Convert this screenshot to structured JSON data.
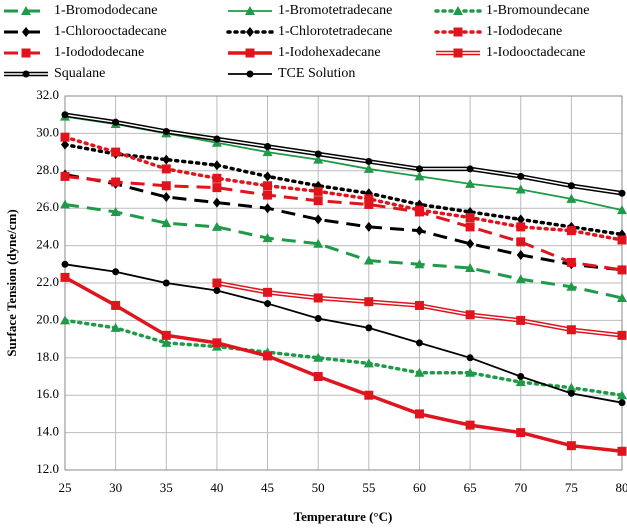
{
  "chart_data": {
    "type": "line",
    "x_label": "Temperature (°C)",
    "y_label": "Surface Tension (dyne/cm)",
    "x": [
      25,
      30,
      35,
      40,
      45,
      50,
      55,
      60,
      65,
      70,
      75,
      80
    ],
    "xlim": [
      25,
      80
    ],
    "xticks": [
      25,
      30,
      35,
      40,
      45,
      50,
      55,
      60,
      65,
      70,
      75,
      80
    ],
    "ylim": [
      12,
      32
    ],
    "yticks": [
      {
        "value": 12,
        "label": "12.0"
      },
      {
        "value": 14,
        "label": "14.0"
      },
      {
        "value": 16,
        "label": "16.0"
      },
      {
        "value": 18,
        "label": "18.0"
      },
      {
        "value": 20,
        "label": "20.0"
      },
      {
        "value": 22,
        "label": "22.0"
      },
      {
        "value": 24,
        "label": "24.0"
      },
      {
        "value": 26,
        "label": "26.0"
      },
      {
        "value": 28,
        "label": "28.0"
      },
      {
        "value": 30,
        "label": "30.0"
      },
      {
        "value": 32,
        "label": "32.0"
      }
    ],
    "grid": true,
    "legend": "top",
    "series": [
      {
        "name": "1-Bromododecane",
        "color": "#1f9a48",
        "dash": "long",
        "marker": "triangle",
        "values": [
          26.2,
          25.8,
          25.2,
          25.0,
          24.4,
          24.1,
          23.2,
          23.0,
          22.8,
          22.2,
          21.8,
          21.2
        ]
      },
      {
        "name": "1-Bromotetradecane",
        "color": "#1f9a48",
        "dash": "solid",
        "marker": "triangle",
        "values": [
          30.9,
          30.5,
          30.0,
          29.5,
          29.0,
          28.6,
          28.1,
          27.7,
          27.3,
          27.0,
          26.5,
          25.9
        ]
      },
      {
        "name": "1-Bromoundecane",
        "color": "#1f9a48",
        "dash": "dot",
        "marker": "triangle",
        "values": [
          20.0,
          19.6,
          18.8,
          18.6,
          18.3,
          18.0,
          17.7,
          17.2,
          17.2,
          16.7,
          16.4,
          16.0
        ]
      },
      {
        "name": "1-Chlorooctadecane",
        "color": "#000000",
        "dash": "long",
        "marker": "diamond",
        "values": [
          27.8,
          27.3,
          26.6,
          26.3,
          26.0,
          25.4,
          25.0,
          24.8,
          24.1,
          23.5,
          23.0,
          22.7
        ]
      },
      {
        "name": "1-Chlorotetradecane",
        "color": "#000000",
        "dash": "dot",
        "marker": "diamond",
        "values": [
          29.4,
          28.9,
          28.6,
          28.3,
          27.7,
          27.2,
          26.8,
          26.2,
          25.8,
          25.4,
          25.0,
          24.6
        ]
      },
      {
        "name": "1-Iododecane",
        "color": "#e0141c",
        "dash": "dot",
        "marker": "square",
        "values": [
          29.8,
          29.0,
          28.1,
          27.6,
          27.2,
          26.9,
          26.5,
          25.9,
          25.5,
          25.0,
          24.8,
          24.3
        ]
      },
      {
        "name": "1-Iodododecane",
        "color": "#e0141c",
        "dash": "long",
        "marker": "square",
        "values": [
          27.7,
          27.4,
          27.2,
          27.1,
          26.7,
          26.4,
          26.2,
          25.8,
          25.0,
          24.2,
          23.1,
          22.7
        ]
      },
      {
        "name": "1-Iodohexadecane",
        "color": "#e0141c",
        "dash": "thick",
        "marker": "square",
        "values": [
          22.3,
          20.8,
          19.2,
          18.8,
          18.1,
          17.0,
          16.0,
          15.0,
          14.4,
          14.0,
          13.3,
          13.0
        ]
      },
      {
        "name": "1-Iodooctadecane",
        "color": "#e0141c",
        "dash": "double",
        "marker": "square",
        "values": [
          null,
          null,
          null,
          22.0,
          21.5,
          21.2,
          21.0,
          20.8,
          20.3,
          20.0,
          19.5,
          19.2
        ]
      },
      {
        "name": "Squalane",
        "color": "#000000",
        "dash": "double",
        "marker": "circle",
        "values": [
          31.0,
          30.6,
          30.1,
          29.7,
          29.3,
          28.9,
          28.5,
          28.1,
          28.1,
          27.7,
          27.2,
          26.8
        ]
      },
      {
        "name": "TCE Solution",
        "color": "#000000",
        "dash": "solid",
        "marker": "circle",
        "values": [
          23.0,
          22.6,
          22.0,
          21.6,
          20.9,
          20.1,
          19.6,
          18.8,
          18.0,
          17.0,
          16.1,
          15.6
        ]
      }
    ]
  }
}
